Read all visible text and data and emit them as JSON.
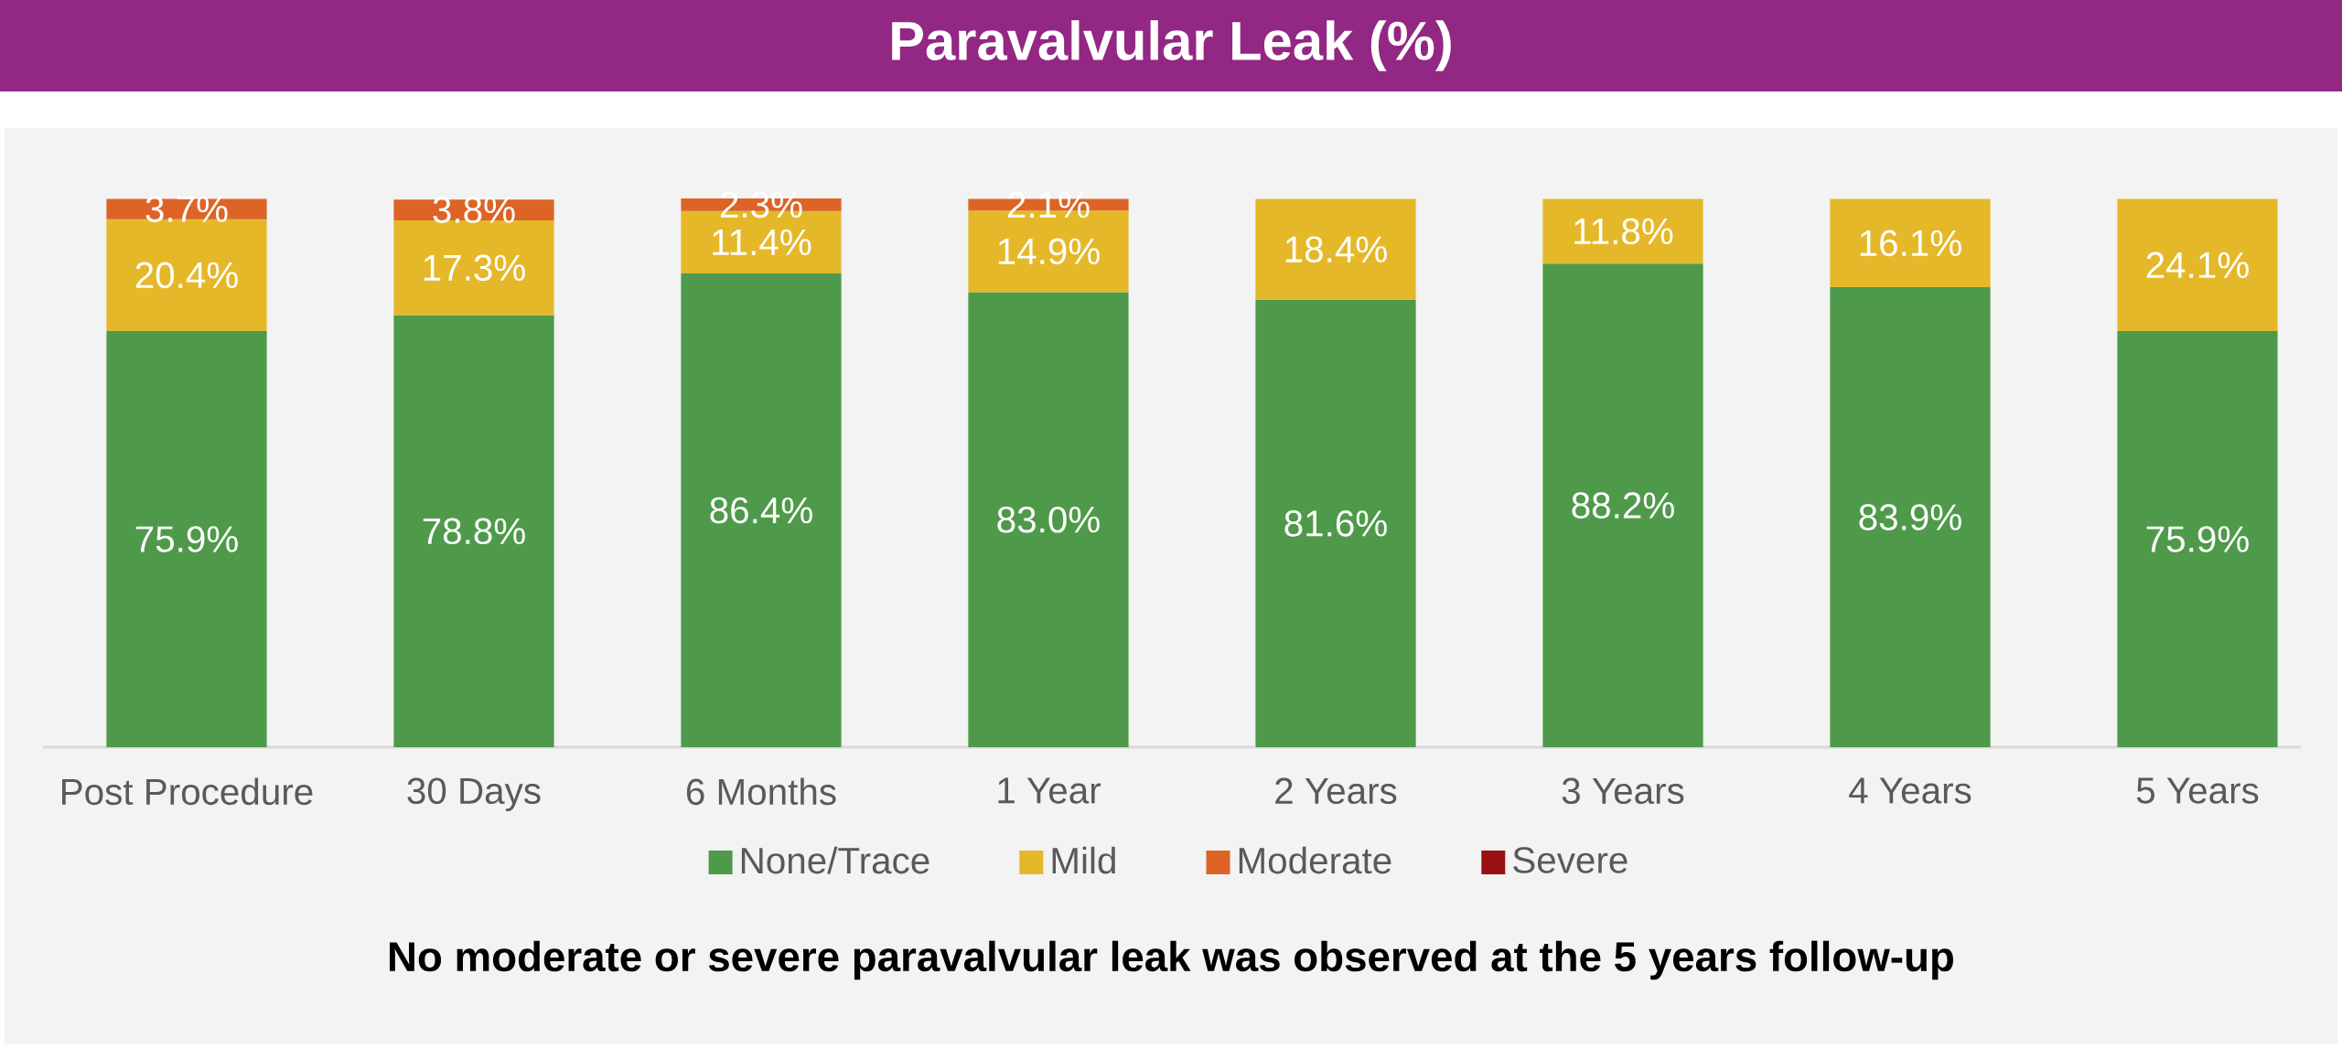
{
  "chart_data": {
    "type": "bar",
    "stacked": true,
    "title": "Paravalvular Leak (%)",
    "categories": [
      "Post Procedure",
      "30 Days",
      "6 Months",
      "1 Year",
      "2 Years",
      "3 Years",
      "4 Years",
      "5 Years"
    ],
    "series": [
      {
        "name": "None/Trace",
        "color": "#4e9a4a",
        "values": [
          75.9,
          78.8,
          86.4,
          83.0,
          81.6,
          88.2,
          83.9,
          75.9
        ],
        "value_labels": [
          "75.9%",
          "78.8%",
          "86.4%",
          "83.0%",
          "81.6%",
          "88.2%",
          "83.9%",
          "75.9%"
        ]
      },
      {
        "name": "Mild",
        "color": "#e5b82a",
        "values": [
          20.4,
          17.3,
          11.4,
          14.9,
          18.4,
          11.8,
          16.1,
          24.1
        ],
        "value_labels": [
          "20.4%",
          "17.3%",
          "11.4%",
          "14.9%",
          "18.4%",
          "11.8%",
          "16.1%",
          "24.1%"
        ]
      },
      {
        "name": "Moderate",
        "color": "#dd6426",
        "values": [
          3.7,
          3.8,
          2.3,
          2.1,
          null,
          null,
          null,
          null
        ],
        "value_labels": [
          "3.7%",
          "3.8%",
          "2.3%",
          "2.1%",
          null,
          null,
          null,
          null
        ]
      },
      {
        "name": "Severe",
        "color": "#9b1010",
        "values": [
          null,
          null,
          null,
          null,
          null,
          null,
          null,
          null
        ]
      }
    ],
    "legend": "bottom",
    "annotations": [
      "No moderate or severe paravalvular leak was observed at the 5 years follow-up"
    ]
  }
}
